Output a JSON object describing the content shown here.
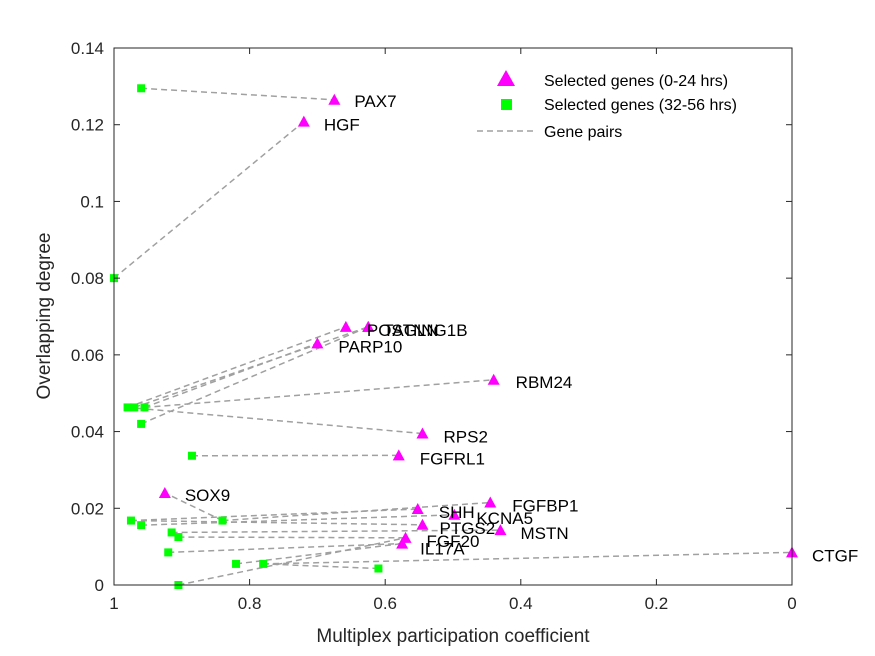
{
  "colors": {
    "tri": "#ff00ff",
    "sq": "#00ff00",
    "pair": "#a0a0a0",
    "axis": "#262626"
  },
  "chart_data": {
    "type": "scatter",
    "xlabel": "Multiplex participation coefficient",
    "ylabel": "Overlapping degree",
    "xlim": [
      1,
      0
    ],
    "x_reversed": true,
    "ylim": [
      0,
      0.14
    ],
    "xticks": [
      1,
      0.8,
      0.6,
      0.4,
      0.2,
      0
    ],
    "xtick_labels": [
      "1",
      "0.8",
      "0.6",
      "0.4",
      "0.2",
      "0"
    ],
    "yticks": [
      0,
      0.02,
      0.04,
      0.06,
      0.08,
      0.1,
      0.12,
      0.14
    ],
    "ytick_labels": [
      "0",
      "0.02",
      "0.04",
      "0.06",
      "0.08",
      "0.1",
      "0.12",
      "0.14"
    ],
    "grid": false,
    "legend": {
      "location": "top-right",
      "entries": [
        "Selected genes (0-24 hrs)",
        "Selected genes (32-56 hrs)",
        "Gene pairs"
      ]
    },
    "series": [
      {
        "name": "Selected genes (0-24 hrs)",
        "marker": "triangle",
        "points": [
          {
            "label": "PAX7",
            "x": 0.675,
            "y": 0.1265
          },
          {
            "label": "HGF",
            "x": 0.72,
            "y": 0.1208
          },
          {
            "label": "POSTN",
            "x": 0.658,
            "y": 0.0673
          },
          {
            "label": "TAGLN",
            "x": 0.625,
            "y": 0.0673
          },
          {
            "label": "NG1B",
            "x": 0.625,
            "y": 0.0673
          },
          {
            "label": "PARP10",
            "x": 0.7,
            "y": 0.063
          },
          {
            "label": "RBM24",
            "x": 0.44,
            "y": 0.0535
          },
          {
            "label": "RPS2",
            "x": 0.545,
            "y": 0.0395
          },
          {
            "label": "FGFRL1",
            "x": 0.58,
            "y": 0.0338
          },
          {
            "label": "SOX9",
            "x": 0.925,
            "y": 0.024
          },
          {
            "label": "FGFBP1",
            "x": 0.445,
            "y": 0.0215
          },
          {
            "label": "SHH",
            "x": 0.552,
            "y": 0.0198
          },
          {
            "label": "KCNA5",
            "x": 0.498,
            "y": 0.0183
          },
          {
            "label": "PTGS2",
            "x": 0.545,
            "y": 0.0157
          },
          {
            "label": "MSTN",
            "x": 0.43,
            "y": 0.0143
          },
          {
            "label": "FGF20",
            "x": 0.57,
            "y": 0.0123
          },
          {
            "label": "IL17A",
            "x": 0.575,
            "y": 0.0108
          },
          {
            "label": "CTGF",
            "x": 0.0,
            "y": 0.0085
          }
        ]
      },
      {
        "name": "Selected genes (32-56 hrs)",
        "marker": "square",
        "points": [
          {
            "x": 0.96,
            "y": 0.1295
          },
          {
            "x": 1.0,
            "y": 0.08
          },
          {
            "x": 0.98,
            "y": 0.0463
          },
          {
            "x": 0.97,
            "y": 0.0463
          },
          {
            "x": 0.955,
            "y": 0.0463
          },
          {
            "x": 0.96,
            "y": 0.042
          },
          {
            "x": 0.885,
            "y": 0.0337
          },
          {
            "x": 0.84,
            "y": 0.0168
          },
          {
            "x": 0.975,
            "y": 0.0168
          },
          {
            "x": 0.96,
            "y": 0.0156
          },
          {
            "x": 0.915,
            "y": 0.0137
          },
          {
            "x": 0.905,
            "y": 0.0125
          },
          {
            "x": 0.92,
            "y": 0.0085
          },
          {
            "x": 0.82,
            "y": 0.0055
          },
          {
            "x": 0.78,
            "y": 0.0055
          },
          {
            "x": 0.61,
            "y": 0.0043
          },
          {
            "x": 0.905,
            "y": 0.0
          }
        ]
      }
    ],
    "pairs": [
      {
        "from": [
          0.96,
          0.1295
        ],
        "to": [
          0.675,
          0.1265
        ]
      },
      {
        "from": [
          1.0,
          0.08
        ],
        "to": [
          0.72,
          0.1208
        ]
      },
      {
        "from": [
          0.98,
          0.0463
        ],
        "to": [
          0.658,
          0.0673
        ]
      },
      {
        "from": [
          0.97,
          0.0463
        ],
        "to": [
          0.625,
          0.0673
        ]
      },
      {
        "from": [
          0.955,
          0.0463
        ],
        "to": [
          0.7,
          0.063
        ]
      },
      {
        "from": [
          0.96,
          0.042
        ],
        "to": [
          0.625,
          0.0673
        ]
      },
      {
        "from": [
          0.955,
          0.0463
        ],
        "to": [
          0.44,
          0.0535
        ]
      },
      {
        "from": [
          0.98,
          0.0463
        ],
        "to": [
          0.545,
          0.0395
        ]
      },
      {
        "from": [
          0.885,
          0.0337
        ],
        "to": [
          0.58,
          0.0338
        ]
      },
      {
        "from": [
          0.84,
          0.0168
        ],
        "to": [
          0.925,
          0.024
        ]
      },
      {
        "from": [
          0.84,
          0.0168
        ],
        "to": [
          0.445,
          0.0215
        ]
      },
      {
        "from": [
          0.975,
          0.0168
        ],
        "to": [
          0.552,
          0.0198
        ]
      },
      {
        "from": [
          0.96,
          0.0156
        ],
        "to": [
          0.498,
          0.0183
        ]
      },
      {
        "from": [
          0.975,
          0.0168
        ],
        "to": [
          0.545,
          0.0157
        ]
      },
      {
        "from": [
          0.915,
          0.0137
        ],
        "to": [
          0.43,
          0.0143
        ]
      },
      {
        "from": [
          0.905,
          0.0125
        ],
        "to": [
          0.57,
          0.0123
        ]
      },
      {
        "from": [
          0.92,
          0.0085
        ],
        "to": [
          0.575,
          0.0108
        ]
      },
      {
        "from": [
          0.82,
          0.0055
        ],
        "to": [
          0.575,
          0.0108
        ]
      },
      {
        "from": [
          0.78,
          0.0055
        ],
        "to": [
          0.0,
          0.0085
        ]
      },
      {
        "from": [
          0.61,
          0.0043
        ],
        "to": [
          0.78,
          0.0055
        ]
      },
      {
        "from": [
          0.905,
          0.0
        ],
        "to": [
          0.57,
          0.0123
        ]
      }
    ]
  }
}
